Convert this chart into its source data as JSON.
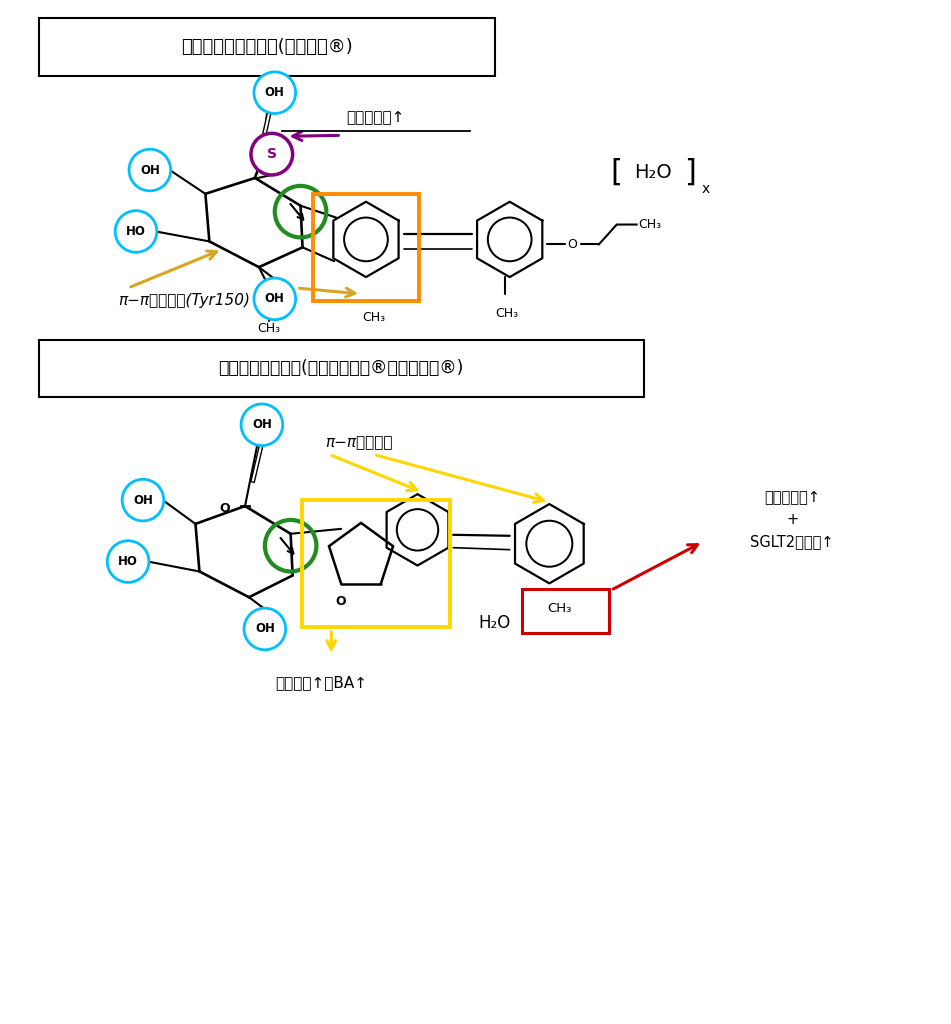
{
  "title1": "ルセオグリフロジン(ルセフィ®)",
  "title2": "トホグリフロジン(アプルウェイ®、デベルザ®)",
  "label_oral1": "経口吸収性↑",
  "label_pi_pi1": "π−π相互作用(Tyr150)",
  "label_oral2": "経口吸収性↑\n+\nSGLT2選択性↑",
  "label_pi_pi2": "π−π相互作用",
  "label_ba2": "阻害活性↑＋BA↑",
  "label_h2o2": "H₂O",
  "bg_color": "#ffffff",
  "cyan": "#00bfff",
  "purple": "#800080",
  "green": "#228B22",
  "orange": "#FF8C00",
  "yellow": "#FFD700",
  "red": "#CC0000",
  "gold": "#DAA520"
}
